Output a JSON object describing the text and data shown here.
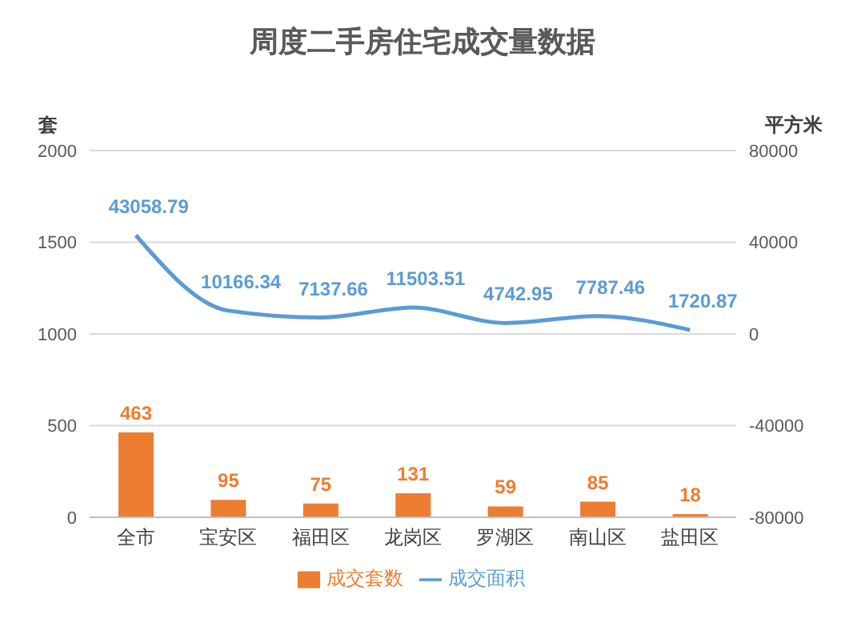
{
  "chart_data": {
    "type": "bar",
    "title": "周度二手房住宅成交量数据",
    "ylabel": "套",
    "y2label": "平方米",
    "categories": [
      "全市",
      "宝安区",
      "福田区",
      "龙岗区",
      "罗湖区",
      "南山区",
      "盐田区"
    ],
    "series": [
      {
        "name": "成交套数",
        "color": "#ed7d31",
        "values": [
          463,
          95,
          75,
          131,
          59,
          85,
          18
        ]
      },
      {
        "name": "成交面积",
        "type": "line",
        "axis": "y2",
        "color": "#5b9bd5",
        "values": [
          43058.79,
          10166.34,
          7137.66,
          11503.51,
          4742.95,
          7787.46,
          1720.87
        ]
      }
    ],
    "ylim": [
      0,
      2000
    ],
    "yticks": [
      0,
      500,
      1000,
      1500,
      2000
    ],
    "y2lim": [
      -80000,
      80000
    ],
    "y2ticks": [
      -80000,
      -40000,
      0,
      40000,
      80000
    ],
    "grid": "y",
    "legend": "bottom",
    "data_labels": true,
    "marker": "none",
    "line_style": "solid"
  }
}
